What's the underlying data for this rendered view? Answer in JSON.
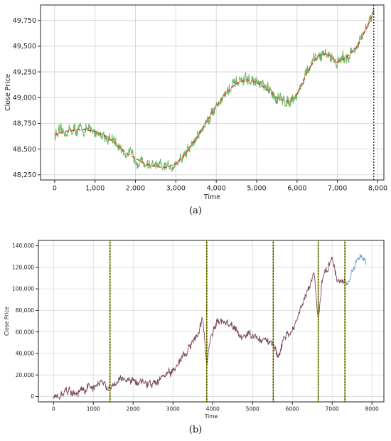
{
  "chart_data": [
    {
      "type": "line",
      "caption": "(a)",
      "xlabel": "Time",
      "ylabel": "Close Price",
      "xlim": [
        -350,
        8150
      ],
      "ylim": [
        48200,
        49900
      ],
      "x_ticks": [
        0,
        1000,
        2000,
        3000,
        4000,
        5000,
        6000,
        7000,
        8000
      ],
      "x_tick_labels": [
        "0",
        "1,000",
        "2,000",
        "3,000",
        "4,000",
        "5,000",
        "6,000",
        "7,000",
        "8,000"
      ],
      "y_ticks": [
        48250,
        48500,
        48750,
        49000,
        49250,
        49500,
        49750
      ],
      "y_tick_labels": [
        "48,250",
        "48,500",
        "48,750",
        "49,000",
        "49,250",
        "49,500",
        "49,750"
      ],
      "grid": true,
      "vlines": [
        7900
      ],
      "colors": {
        "raw": "#5aa84e",
        "smooth": "#d9472b",
        "vline": "#000000",
        "grid": "#cfcfcf"
      },
      "series": [
        {
          "style": "noisy",
          "x": [
            0,
            250,
            500,
            750,
            1000,
            1250,
            1500,
            1750,
            2000,
            2250,
            2500,
            2750,
            3000,
            3250,
            3500,
            3750,
            4000,
            4250,
            4500,
            4750,
            5000,
            5250,
            5500,
            5750,
            6000,
            6250,
            6500,
            6750,
            7000,
            7250,
            7500,
            7750,
            7900
          ],
          "y": [
            48640,
            48670,
            48685,
            48690,
            48670,
            48630,
            48555,
            48470,
            48410,
            48355,
            48330,
            48320,
            48360,
            48460,
            48600,
            48760,
            48920,
            49050,
            49140,
            49175,
            49150,
            49080,
            49000,
            48960,
            49030,
            49250,
            49400,
            49430,
            49340,
            49400,
            49500,
            49700,
            49830
          ]
        },
        {
          "style": "smooth",
          "x": [
            0,
            250,
            500,
            750,
            1000,
            1250,
            1500,
            1750,
            2000,
            2250,
            2500,
            2750,
            3000,
            3250,
            3500,
            3750,
            4000,
            4250,
            4500,
            4750,
            5000,
            5250,
            5500,
            5750,
            6000,
            6250,
            6500,
            6750,
            7000,
            7250,
            7500,
            7750,
            7900
          ],
          "y": [
            48640,
            48670,
            48685,
            48690,
            48670,
            48630,
            48555,
            48470,
            48410,
            48355,
            48330,
            48320,
            48360,
            48460,
            48600,
            48760,
            48920,
            49050,
            49140,
            49175,
            49150,
            49080,
            49000,
            48960,
            49030,
            49250,
            49400,
            49430,
            49340,
            49400,
            49500,
            49700,
            49830
          ]
        }
      ]
    },
    {
      "type": "line",
      "caption": "(b)",
      "xlabel": "Time",
      "ylabel": "Close Price",
      "xlim": [
        -380,
        8300
      ],
      "ylim": [
        -5000,
        145000
      ],
      "x_ticks": [
        0,
        1000,
        2000,
        3000,
        4000,
        5000,
        6000,
        7000,
        8000
      ],
      "x_tick_labels": [
        "0",
        "1000",
        "2000",
        "3000",
        "4000",
        "5000",
        "6000",
        "7000",
        "8000"
      ],
      "y_ticks": [
        0,
        20000,
        40000,
        60000,
        80000,
        100000,
        120000,
        140000
      ],
      "y_tick_labels": [
        "0",
        "20,000",
        "40,000",
        "60,000",
        "80,000",
        "100,000",
        "120,000",
        "140,000"
      ],
      "grid": true,
      "vlines": [
        1420,
        3850,
        5520,
        6650,
        7320
      ],
      "colors": {
        "main": "#7a4a5e",
        "tail": "#6a9ed0",
        "vline_dark": "#2b2b00",
        "vline_light": "#b7c400",
        "grid": "#d9d9d9"
      },
      "series": [
        {
          "style": "noisy_main",
          "x": [
            0,
            150,
            300,
            450,
            600,
            800,
            1000,
            1150,
            1300,
            1420,
            1550,
            1700,
            1900,
            2100,
            2300,
            2500,
            2700,
            2900,
            3100,
            3300,
            3500,
            3650,
            3750,
            3850,
            3950,
            4100,
            4300,
            4500,
            4700,
            4900,
            5100,
            5300,
            5520,
            5650,
            5800,
            6000,
            6200,
            6400,
            6550,
            6650,
            6750,
            6900,
            7000,
            7150,
            7320
          ],
          "y": [
            0,
            500,
            4500,
            4000,
            3500,
            7000,
            10000,
            12000,
            11000,
            7000,
            12000,
            18000,
            16000,
            14000,
            12000,
            10000,
            16000,
            23000,
            28000,
            38000,
            52000,
            60000,
            74000,
            30000,
            55000,
            68000,
            70000,
            66000,
            55000,
            58000,
            55000,
            52000,
            48000,
            38000,
            55000,
            60000,
            80000,
            100000,
            115000,
            70000,
            108000,
            120000,
            130000,
            105000,
            110000
          ]
        },
        {
          "style": "noisy_tail",
          "x": [
            7320,
            7400,
            7500,
            7600,
            7700,
            7800,
            7850
          ],
          "y": [
            110000,
            103000,
            116000,
            125000,
            130000,
            128000,
            125000
          ]
        }
      ]
    }
  ]
}
